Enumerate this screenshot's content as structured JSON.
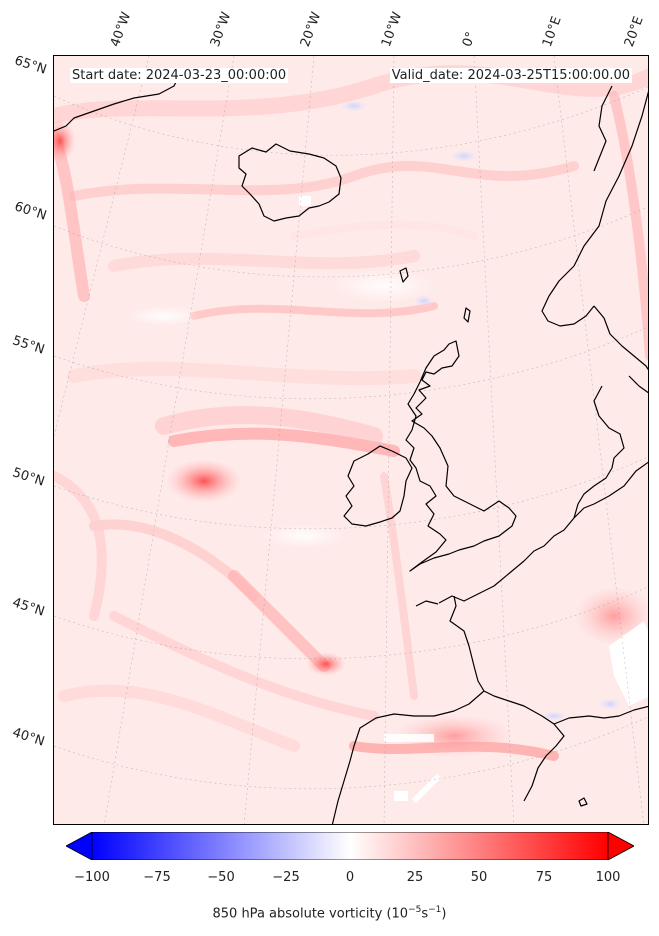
{
  "header": {
    "start_date": "Start date: 2024-03-23_00:00:00",
    "valid_date": "Valid_date: 2024-03-25T15:00:00.00"
  },
  "longitude_labels": [
    "40°W",
    "30°W",
    "20°W",
    "10°W",
    "0°",
    "10°E",
    "20°E"
  ],
  "latitude_labels": [
    "65°N",
    "60°N",
    "55°N",
    "50°N",
    "45°N",
    "40°N"
  ],
  "colorbar": {
    "ticks": [
      "−100",
      "−75",
      "−50",
      "−25",
      "0",
      "25",
      "50",
      "75",
      "100"
    ],
    "label": "850 hPa absolute vorticity (10",
    "label_exp": "−5",
    "label_unit": "s",
    "label_exp2": "−1",
    "label_end": ")",
    "min": -100,
    "max": 100,
    "low_color": "#0000ff",
    "mid_color": "#ffffff",
    "high_color": "#ff0000",
    "extend": "both"
  }
}
